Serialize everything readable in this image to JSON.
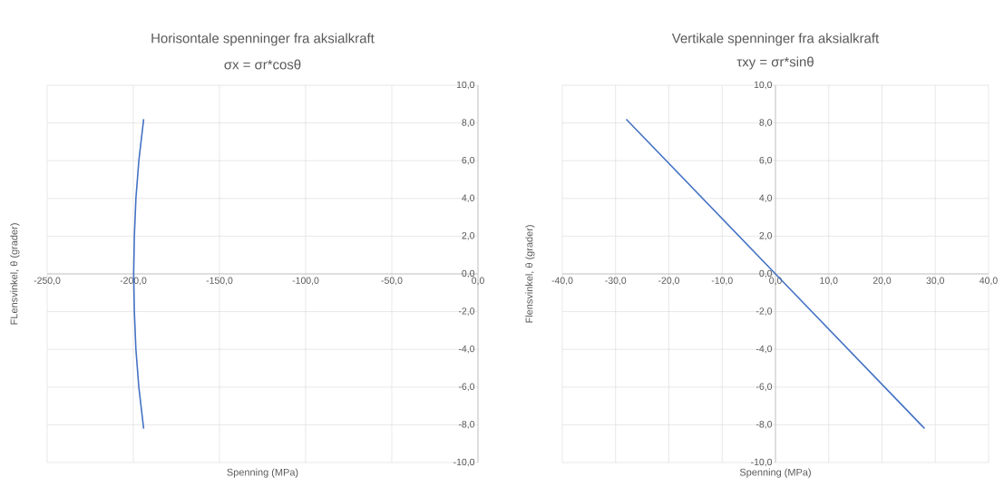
{
  "chart_data": [
    {
      "type": "line",
      "title": "Horisontale spenninger fra aksialkraft",
      "subtitle": "σx = σr*cosθ",
      "xlabel": "Spenning (MPa)",
      "ylabel": "FLensvinkel, θ (grader)",
      "xlim": [
        -250,
        0
      ],
      "ylim": [
        -10,
        10
      ],
      "xticks": [
        {
          "value": -250,
          "label": "-250,0"
        },
        {
          "value": -200,
          "label": "-200,0"
        },
        {
          "value": -150,
          "label": "-150,0"
        },
        {
          "value": -100,
          "label": "-100,0"
        },
        {
          "value": -50,
          "label": "-50,0"
        },
        {
          "value": 0,
          "label": "0,0"
        }
      ],
      "yticks": [
        {
          "value": -10,
          "label": "-10,0"
        },
        {
          "value": -8,
          "label": "-8,0"
        },
        {
          "value": -6,
          "label": "-6,0"
        },
        {
          "value": -4,
          "label": "-4,0"
        },
        {
          "value": -2,
          "label": "-2,0"
        },
        {
          "value": 0,
          "label": "0,0"
        },
        {
          "value": 2,
          "label": "2,0"
        },
        {
          "value": 4,
          "label": "4,0"
        },
        {
          "value": 6,
          "label": "6,0"
        },
        {
          "value": 8,
          "label": "8,0"
        },
        {
          "value": 10,
          "label": "10,0"
        }
      ],
      "grid": true,
      "marker": "none",
      "line_style": "solid",
      "series": [
        {
          "color": "#4472c4",
          "x": [
            -194.0,
            -196.8,
            -198.5,
            -199.4,
            -199.8,
            -199.4,
            -198.5,
            -196.8,
            -194.0
          ],
          "values": [
            8.2,
            6,
            4,
            2,
            0,
            -2,
            -4,
            -6,
            -8.2
          ]
        }
      ]
    },
    {
      "type": "line",
      "title": "Vertikale spenninger fra aksialkraft",
      "subtitle": "τxy = σr*sinθ",
      "xlabel": "Spenning (MPa)",
      "ylabel": "Flensvinkel, θ (grader)",
      "xlim": [
        -40,
        40
      ],
      "ylim": [
        -10,
        10
      ],
      "xticks": [
        {
          "value": -40,
          "label": "-40,0"
        },
        {
          "value": -30,
          "label": "-30,0"
        },
        {
          "value": -20,
          "label": "-20,0"
        },
        {
          "value": -10,
          "label": "-10,0"
        },
        {
          "value": 0,
          "label": "0,0"
        },
        {
          "value": 10,
          "label": "10,0"
        },
        {
          "value": 20,
          "label": "20,0"
        },
        {
          "value": 30,
          "label": "30,0"
        },
        {
          "value": 40,
          "label": "40,0"
        }
      ],
      "yticks": [
        {
          "value": -10,
          "label": "-10,0"
        },
        {
          "value": -8,
          "label": "-8,0"
        },
        {
          "value": -6,
          "label": "-6,0"
        },
        {
          "value": -4,
          "label": "-4,0"
        },
        {
          "value": -2,
          "label": "-2,0"
        },
        {
          "value": 0,
          "label": "0,0"
        },
        {
          "value": 2,
          "label": "2,0"
        },
        {
          "value": 4,
          "label": "4,0"
        },
        {
          "value": 6,
          "label": "6,0"
        },
        {
          "value": 8,
          "label": "8,0"
        },
        {
          "value": 10,
          "label": "10,0"
        }
      ],
      "grid": true,
      "marker": "none",
      "line_style": "solid",
      "series": [
        {
          "color": "#4472c4",
          "x": [
            -28.0,
            0,
            28.0
          ],
          "values": [
            8.2,
            0,
            -8.2
          ]
        }
      ]
    }
  ]
}
